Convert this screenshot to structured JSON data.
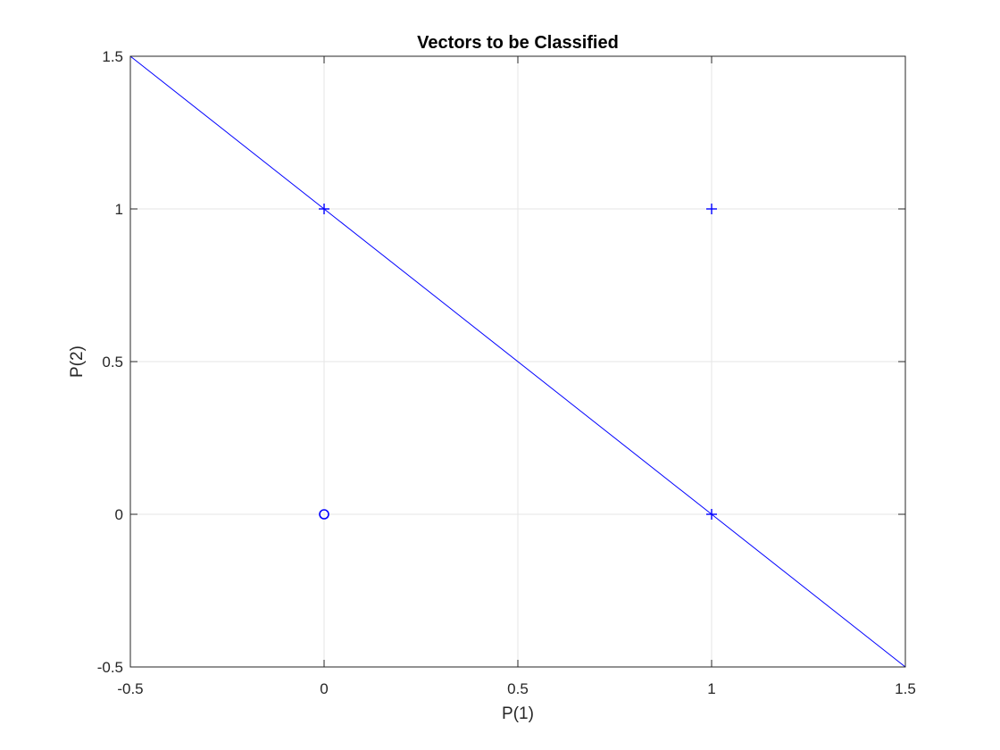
{
  "chart_data": {
    "type": "scatter",
    "title": "Vectors to be Classified",
    "xlabel": "P(1)",
    "ylabel": "P(2)",
    "xlim": [
      -0.5,
      1.5
    ],
    "ylim": [
      -0.5,
      1.5
    ],
    "grid": true,
    "xticks": [
      -0.5,
      0,
      0.5,
      1,
      1.5
    ],
    "xtick_labels": [
      "-0.5",
      "0",
      "0.5",
      "1",
      "1.5"
    ],
    "yticks": [
      -0.5,
      0,
      0.5,
      1,
      1.5
    ],
    "ytick_labels": [
      "-0.5",
      "0",
      "0.5",
      "1",
      "1.5"
    ],
    "points": [
      {
        "x": 0,
        "y": 0,
        "marker": "o"
      },
      {
        "x": 0,
        "y": 1,
        "marker": "+"
      },
      {
        "x": 1,
        "y": 0,
        "marker": "+"
      },
      {
        "x": 1,
        "y": 1,
        "marker": "+"
      }
    ],
    "decision_line": {
      "x": [
        -0.5,
        1.5
      ],
      "y": [
        1.5,
        -0.5
      ]
    },
    "colors": {
      "marker": "#0000ff",
      "line": "#0000ff",
      "grid": "#e5e5e5",
      "axes": "#262626"
    }
  }
}
